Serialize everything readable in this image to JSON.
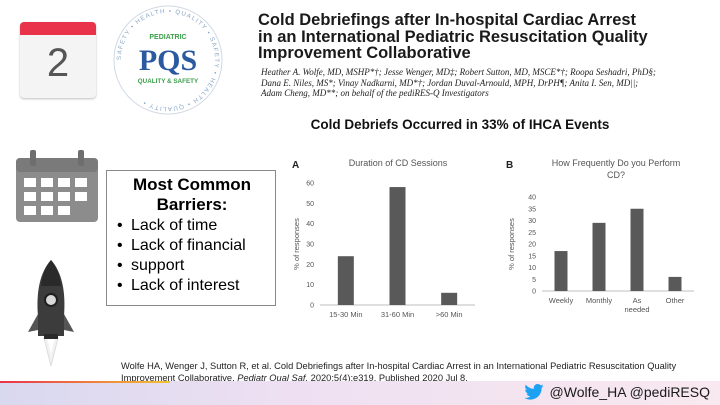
{
  "calendar_page": {
    "number": "2"
  },
  "logo": {
    "top_word": "PEDIATRIC",
    "letters": "PQS",
    "tagline": "QUALITY & SAFETY",
    "ring_text": "SAFETY • HEALTH • QUALITY • SAFETY • HEALTH • QUALITY •",
    "colors": {
      "green": "#3a9e4a",
      "blue": "#2c5aa0"
    }
  },
  "paper": {
    "title_lines": [
      "Cold Debriefings after In-hospital Cardiac Arrest",
      "in an International Pediatric Resuscitation Quality",
      "Improvement Collaborative"
    ],
    "authors_lines": [
      "Heather A. Wolfe, MD, MSHP*†; Jesse Wenger, MD‡; Robert Sutton, MD, MSCE*†; Roopa Seshadri, PhD§;",
      "Dana E. Niles, MS*; Vinay Nadkarni, MD*†; Jordan Duval-Arnould, MPH, DrPH¶; Anita I. Sen, MD||;",
      "Adam Cheng, MD**; on behalf of the pediRES-Q Investigators"
    ]
  },
  "headline": "Cold Debriefs Occurred in 33% of IHCA Events",
  "barriers": {
    "heading_line1": "Most Common",
    "heading_line2": "Barriers:",
    "items": [
      "Lack of time",
      "Lack of financial",
      "support",
      "Lack of interest"
    ]
  },
  "chart_data": [
    {
      "type": "bar",
      "panel": "A",
      "title": "Duration of CD Sessions",
      "ylabel": "% of responses",
      "xlabel": "",
      "categories": [
        "15-30 Min",
        "31-60 Min",
        ">60 Min"
      ],
      "values": [
        24,
        58,
        6
      ],
      "ylim": [
        0,
        60
      ],
      "yticks": [
        0,
        10,
        20,
        30,
        40,
        50,
        60
      ],
      "grid": false,
      "bar_color": "#595959"
    },
    {
      "type": "bar",
      "panel": "B",
      "title_lines": [
        "How Frequently Do you Perform",
        "CD?"
      ],
      "ylabel": "% of responses",
      "xlabel": "",
      "categories": [
        "Weekly",
        "Monthly",
        "As needed",
        "Other"
      ],
      "values": [
        17,
        29,
        35,
        6
      ],
      "ylim": [
        0,
        40
      ],
      "yticks": [
        0,
        5,
        10,
        15,
        20,
        25,
        30,
        35,
        40
      ],
      "grid": false,
      "bar_color": "#595959"
    }
  ],
  "citation": {
    "pre": "Wolfe HA, Wenger J, Sutton R, et al. Cold Debriefings after In-hospital Cardiac Arrest in an International Pediatric Resuscitation Quality Improvement Collaborative. ",
    "journal": "Pediatr Qual Saf.",
    "post": " 2020;5(4):e319. Published 2020 Jul 8."
  },
  "footer": {
    "handles": "@Wolfe_HA @pediRESQ",
    "twitter_color": "#1da1f2"
  }
}
